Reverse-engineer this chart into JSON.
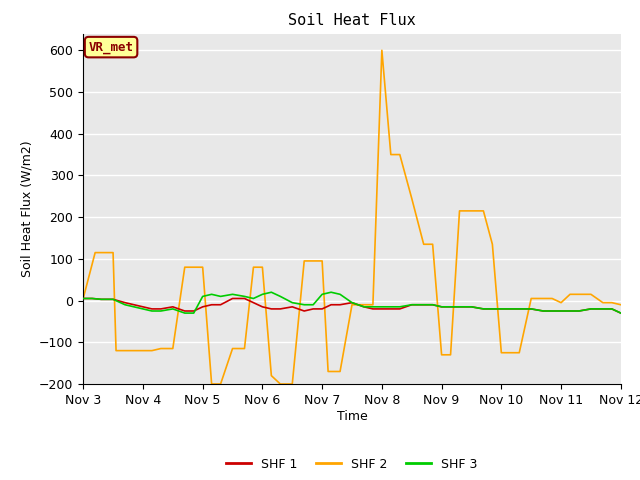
{
  "title": "Soil Heat Flux",
  "ylabel": "Soil Heat Flux (W/m2)",
  "xlabel": "Time",
  "ylim": [
    -200,
    640
  ],
  "yticks": [
    -200,
    -100,
    0,
    100,
    200,
    300,
    400,
    500,
    600
  ],
  "xtick_labels": [
    "Nov 3",
    "Nov 4",
    "Nov 5",
    "Nov 6",
    "Nov 7",
    "Nov 8",
    "Nov 9",
    "Nov 10",
    "Nov 11",
    "Nov 12"
  ],
  "plot_bg_color": "#e8e8e8",
  "fig_bg_color": "#ffffff",
  "grid_color": "#ffffff",
  "annotation_text": "VR_met",
  "annotation_box_color": "#ffff99",
  "annotation_border_color": "#8b0000",
  "shf1_color": "#cc0000",
  "shf2_color": "#ffa500",
  "shf3_color": "#00cc00",
  "shf1_x": [
    0,
    0.15,
    0.3,
    0.5,
    0.7,
    0.85,
    1.0,
    1.15,
    1.3,
    1.5,
    1.7,
    1.85,
    2.0,
    2.15,
    2.3,
    2.5,
    2.7,
    2.85,
    3.0,
    3.15,
    3.3,
    3.5,
    3.7,
    3.85,
    4.0,
    4.15,
    4.3,
    4.5,
    4.7,
    4.85,
    5.0,
    5.15,
    5.3,
    5.5,
    5.7,
    5.85,
    6.0,
    6.15,
    6.3,
    6.5,
    6.7,
    6.85,
    7.0,
    7.15,
    7.3,
    7.5,
    7.7,
    7.85,
    8.0,
    8.15,
    8.3,
    8.5,
    8.7,
    8.85,
    9.0
  ],
  "shf1_y": [
    5,
    5,
    3,
    3,
    -5,
    -10,
    -15,
    -20,
    -20,
    -15,
    -25,
    -25,
    -15,
    -10,
    -10,
    5,
    5,
    -5,
    -15,
    -20,
    -20,
    -15,
    -25,
    -20,
    -20,
    -10,
    -10,
    -5,
    -15,
    -20,
    -20,
    -20,
    -20,
    -10,
    -10,
    -10,
    -15,
    -15,
    -15,
    -15,
    -20,
    -20,
    -20,
    -20,
    -20,
    -20,
    -25,
    -25,
    -25,
    -25,
    -25,
    -20,
    -20,
    -20,
    -30
  ],
  "shf2_x": [
    0,
    0.2,
    0.35,
    0.5,
    0.55,
    0.7,
    0.85,
    1.0,
    1.15,
    1.3,
    1.5,
    1.7,
    1.85,
    2.0,
    2.15,
    2.3,
    2.5,
    2.7,
    2.85,
    3.0,
    3.15,
    3.3,
    3.5,
    3.7,
    3.85,
    4.0,
    4.1,
    4.15,
    4.3,
    4.5,
    4.7,
    4.85,
    5.0,
    5.15,
    5.3,
    5.5,
    5.7,
    5.85,
    6.0,
    6.05,
    6.15,
    6.3,
    6.5,
    6.7,
    6.85,
    7.0,
    7.15,
    7.3,
    7.5,
    7.7,
    7.85,
    8.0,
    8.15,
    8.3,
    8.5,
    8.7,
    8.85,
    9.0
  ],
  "shf2_y": [
    5,
    115,
    115,
    115,
    -120,
    -120,
    -120,
    -120,
    -120,
    -115,
    -115,
    80,
    80,
    80,
    -200,
    -200,
    -115,
    -115,
    80,
    80,
    -180,
    -200,
    -200,
    95,
    95,
    95,
    -170,
    -170,
    -170,
    -10,
    -10,
    -10,
    600,
    350,
    350,
    245,
    135,
    135,
    -130,
    -130,
    -130,
    215,
    215,
    215,
    135,
    -125,
    -125,
    -125,
    5,
    5,
    5,
    -5,
    15,
    15,
    15,
    -5,
    -5,
    -10
  ],
  "shf3_x": [
    0,
    0.15,
    0.3,
    0.5,
    0.7,
    0.85,
    1.0,
    1.15,
    1.3,
    1.5,
    1.7,
    1.85,
    2.0,
    2.15,
    2.3,
    2.5,
    2.7,
    2.85,
    3.0,
    3.15,
    3.3,
    3.5,
    3.7,
    3.85,
    4.0,
    4.15,
    4.3,
    4.5,
    4.7,
    4.85,
    5.0,
    5.15,
    5.3,
    5.5,
    5.7,
    5.85,
    6.0,
    6.15,
    6.3,
    6.5,
    6.7,
    6.85,
    7.0,
    7.15,
    7.3,
    7.5,
    7.7,
    7.85,
    8.0,
    8.15,
    8.3,
    8.5,
    8.7,
    8.85,
    9.0
  ],
  "shf3_y": [
    5,
    5,
    3,
    3,
    -10,
    -15,
    -20,
    -25,
    -25,
    -20,
    -30,
    -30,
    10,
    15,
    10,
    15,
    10,
    5,
    15,
    20,
    10,
    -5,
    -10,
    -10,
    15,
    20,
    15,
    -5,
    -15,
    -15,
    -15,
    -15,
    -15,
    -10,
    -10,
    -10,
    -15,
    -15,
    -15,
    -15,
    -20,
    -20,
    -20,
    -20,
    -20,
    -20,
    -25,
    -25,
    -25,
    -25,
    -25,
    -20,
    -20,
    -20,
    -30
  ]
}
